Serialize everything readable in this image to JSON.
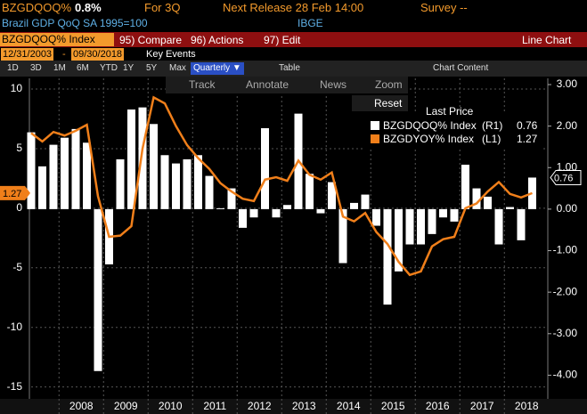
{
  "header": {
    "ticker": "BZGDQOQ%",
    "last": "0.8%",
    "period": "For 3Q",
    "next_release": "Next Release 28 Feb 14:00",
    "survey": "Survey --",
    "description": "Brazil GDP QoQ SA 1995=100",
    "source": "IBGE"
  },
  "menu": {
    "security": "BZGDQOQ% Index",
    "items": [
      "95) Compare",
      "96) Actions",
      "97) Edit"
    ],
    "view": "Line Chart"
  },
  "range": {
    "start": "12/31/2003",
    "end": "09/30/2018",
    "key_events": "Key Events"
  },
  "toolbar": {
    "periods": [
      "1D",
      "3D",
      "1M",
      "6M",
      "YTD",
      "1Y",
      "5Y",
      "Max"
    ],
    "frequency": "Quarterly ▼",
    "table": "Table",
    "chart_content": "Chart Content"
  },
  "tools": [
    "Track",
    "Annotate",
    "News",
    "Zoom",
    "Reset"
  ],
  "chart_data": {
    "type": "bar_line",
    "legend_title": "Last Price",
    "categories": [
      null,
      null,
      null,
      null,
      null,
      null,
      null,
      null,
      null,
      null,
      null,
      null,
      null,
      null,
      null,
      null,
      null,
      null,
      null,
      null,
      null,
      null,
      null,
      null,
      null,
      null,
      null,
      null,
      null,
      null,
      null,
      null,
      null,
      null,
      null,
      null,
      null,
      null,
      null,
      null,
      null,
      null,
      null,
      null,
      null,
      null
    ],
    "year_labels": [
      "2008",
      "2009",
      "2010",
      "2011",
      "2012",
      "2013",
      "2014",
      "2015",
      "2016",
      "2017",
      "2018"
    ],
    "series": [
      {
        "name": "BZGDQOQ% Index",
        "legend_tag": "(R1)",
        "type": "bar",
        "axis": "y2",
        "color": "#ffffff",
        "values": [
          1.85,
          1.03,
          1.55,
          1.72,
          1.93,
          1.6,
          -3.9,
          -1.33,
          1.2,
          2.4,
          2.45,
          2.05,
          1.3,
          1.1,
          1.2,
          1.3,
          0.8,
          0.02,
          0.5,
          -0.45,
          -0.2,
          1.95,
          -0.2,
          0.1,
          2.3,
          0.85,
          -0.1,
          0.65,
          -1.3,
          0.15,
          0.35,
          -0.4,
          -2.3,
          -1.5,
          -0.85,
          -0.85,
          -0.6,
          -0.2,
          -0.3,
          1.07,
          0.5,
          0.3,
          -0.85,
          0.05,
          -0.75,
          0.76
        ]
      },
      {
        "name": "BZGDYOY% Index",
        "legend_tag": "(L1)",
        "type": "line",
        "axis": "y",
        "color": "#f07f1a",
        "values": [
          6.3,
          5.6,
          6.4,
          6.1,
          6.5,
          7.0,
          1.0,
          -2.4,
          -2.3,
          -1.5,
          5.0,
          9.3,
          8.8,
          6.9,
          5.3,
          4.2,
          3.3,
          2.1,
          1.4,
          0.8,
          0.6,
          2.4,
          2.6,
          2.3,
          4.0,
          2.8,
          2.4,
          3.0,
          -0.7,
          -1.1,
          -0.4,
          -2.0,
          -3.0,
          -4.5,
          -5.6,
          -5.3,
          -3.2,
          -2.6,
          -2.4,
          0.0,
          0.4,
          1.4,
          2.2,
          1.2,
          0.9,
          1.27
        ]
      }
    ],
    "ylim": [
      -16,
      10.9
    ],
    "yticks": [
      10,
      5,
      0,
      -5,
      -10,
      -15
    ],
    "y2lim": [
      -4.57,
      3.15
    ],
    "y2ticks": [
      {
        "value": 3,
        "label": "3.00"
      },
      {
        "value": 2,
        "label": "2.00"
      },
      {
        "value": 1,
        "label": "1.00"
      },
      {
        "value": 0,
        "label": "0.00"
      },
      {
        "value": -1,
        "label": "-1.00"
      },
      {
        "value": -2,
        "label": "-2.00"
      },
      {
        "value": -3,
        "label": "-3.00"
      },
      {
        "value": -4,
        "label": "-4.00"
      }
    ],
    "grid": true
  }
}
